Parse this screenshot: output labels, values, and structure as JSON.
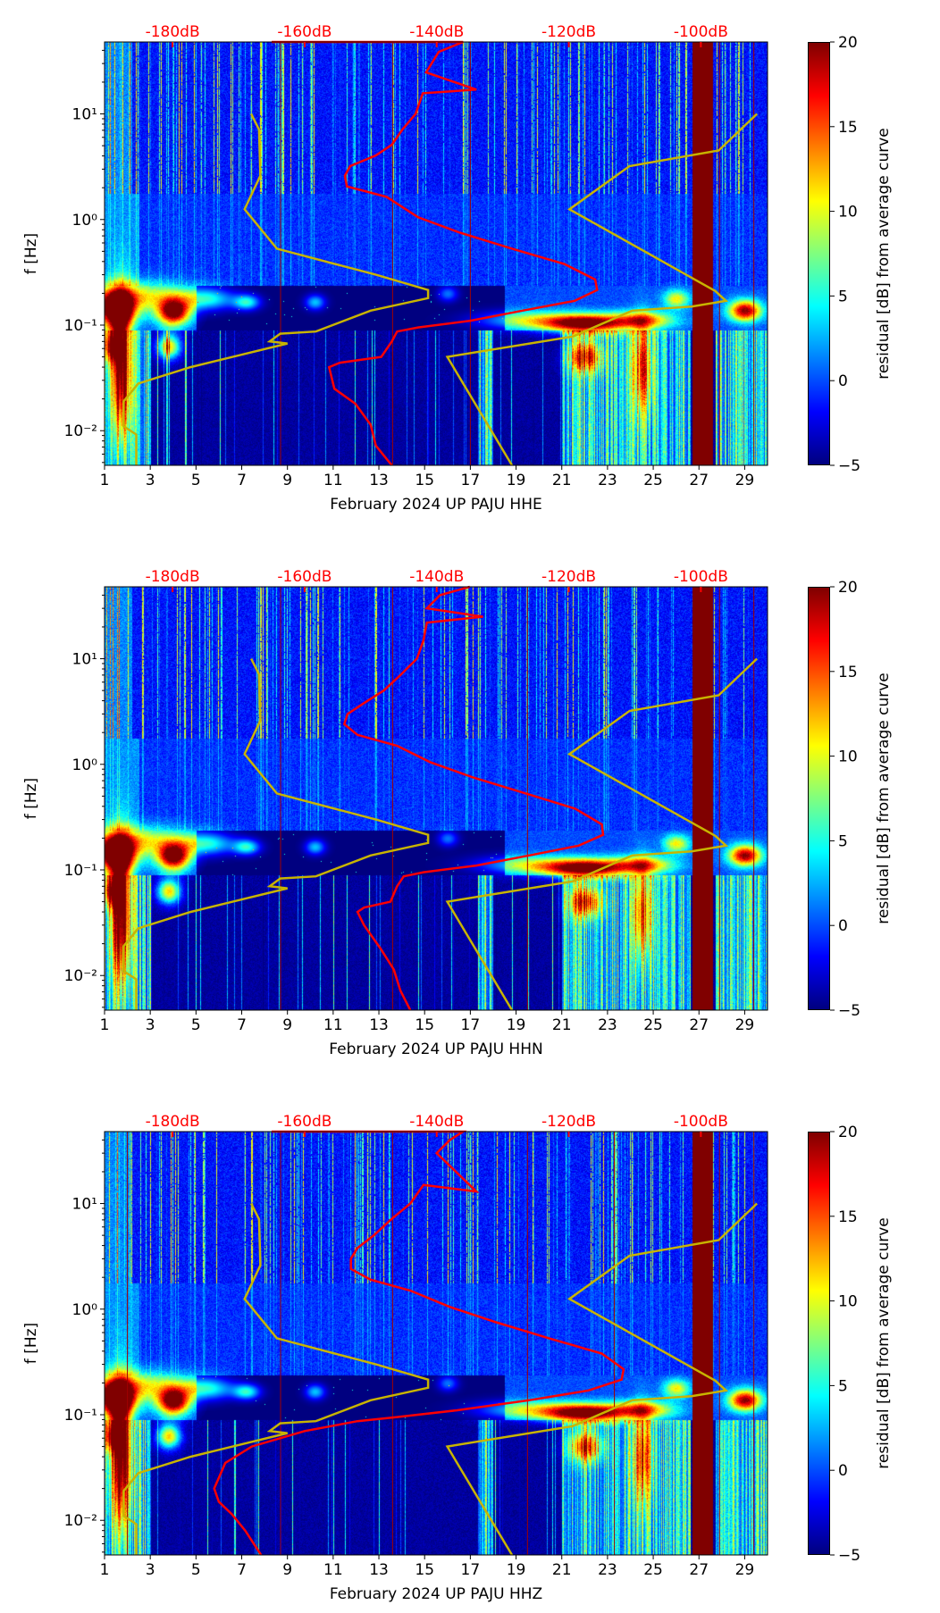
{
  "chart_data": [
    {
      "type": "heatmap",
      "title": "",
      "xlabel": "February 2024 UP PAJU  HHE",
      "ylabel": "f [Hz]",
      "colorbar_label": "residual [dB] from average curve",
      "xlim": [
        1,
        30
      ],
      "ylim": [
        0.0047,
        48
      ],
      "yscale": "log",
      "db_xlim": [
        -190.3,
        -89.9
      ],
      "clim": [
        -5,
        20
      ],
      "x_ticks": [
        "1",
        "3",
        "5",
        "7",
        "9",
        "11",
        "13",
        "15",
        "17",
        "19",
        "21",
        "23",
        "25",
        "27",
        "29"
      ],
      "y_ticks": [
        {
          "value": 10,
          "label": "10¹"
        },
        {
          "value": 1,
          "label": "10⁰"
        },
        {
          "value": 0.1,
          "label": "10⁻¹"
        },
        {
          "value": 0.01,
          "label": "10⁻²"
        }
      ],
      "db_ticks": [
        -180,
        -160,
        -140,
        -120,
        -100
      ],
      "db_tick_labels": [
        "-180dB",
        "-160dB",
        "-140dB",
        "-120dB",
        "-100dB"
      ],
      "colorbar_ticks": [
        "20",
        "15",
        "10",
        "5",
        "0",
        "−5"
      ],
      "colorbar_values": [
        20,
        15,
        10,
        5,
        0,
        -5
      ],
      "gap_days": [
        26.7,
        27.6
      ],
      "marker_days": [
        8.7,
        13.6,
        17,
        27.9,
        29.4
      ],
      "red_curve_db_hz": [
        [
          -165,
          48
        ],
        [
          -136,
          48
        ],
        [
          -139.7,
          38.7
        ],
        [
          -141.6,
          24.7
        ],
        [
          -134,
          17
        ],
        [
          -142.1,
          15.7
        ],
        [
          -143.2,
          10
        ],
        [
          -145.2,
          7.1
        ],
        [
          -146.8,
          5.1
        ],
        [
          -149.2,
          4.05
        ],
        [
          -153.1,
          3.2
        ],
        [
          -153.9,
          2.6
        ],
        [
          -153.6,
          2.06
        ],
        [
          -147.6,
          1.64
        ],
        [
          -142.8,
          1.05
        ],
        [
          -136.5,
          0.75
        ],
        [
          -128.6,
          0.53
        ],
        [
          -120.7,
          0.38
        ],
        [
          -116,
          0.27
        ],
        [
          -115.7,
          0.215
        ],
        [
          -119.1,
          0.17
        ],
        [
          -127,
          0.137
        ],
        [
          -134.9,
          0.11
        ],
        [
          -142.8,
          0.095
        ],
        [
          -146,
          0.087
        ],
        [
          -146.8,
          0.07
        ],
        [
          -148.4,
          0.05
        ],
        [
          -154.7,
          0.044
        ],
        [
          -156.3,
          0.04
        ],
        [
          -155.5,
          0.025
        ],
        [
          -152.3,
          0.018
        ],
        [
          -150,
          0.0114
        ],
        [
          -149.2,
          0.0072
        ],
        [
          -146.8,
          0.0047
        ]
      ]
    },
    {
      "type": "heatmap",
      "title": "",
      "xlabel": "February 2024 UP PAJU  HHN",
      "ylabel": "f [Hz]",
      "colorbar_label": "residual [dB] from average curve",
      "xlim": [
        1,
        30
      ],
      "ylim": [
        0.0047,
        48
      ],
      "yscale": "log",
      "db_xlim": [
        -190.3,
        -89.9
      ],
      "clim": [
        -5,
        20
      ],
      "x_ticks": [
        "1",
        "3",
        "5",
        "7",
        "9",
        "11",
        "13",
        "15",
        "17",
        "19",
        "21",
        "23",
        "25",
        "27",
        "29"
      ],
      "y_ticks": [
        {
          "value": 10,
          "label": "10¹"
        },
        {
          "value": 1,
          "label": "10⁰"
        },
        {
          "value": 0.1,
          "label": "10⁻¹"
        },
        {
          "value": 0.01,
          "label": "10⁻²"
        }
      ],
      "db_ticks": [
        -180,
        -160,
        -140,
        -120,
        -100
      ],
      "db_tick_labels": [
        "-180dB",
        "-160dB",
        "-140dB",
        "-120dB",
        "-100dB"
      ],
      "colorbar_ticks": [
        "20",
        "15",
        "10",
        "5",
        "0",
        "−5"
      ],
      "colorbar_values": [
        20,
        15,
        10,
        5,
        0,
        -5
      ],
      "gap_days": [
        26.7,
        27.6
      ],
      "marker_days": [
        8.7,
        13.6,
        19.5,
        27.9,
        29.4
      ],
      "red_curve_db_hz": [
        [
          -135,
          48
        ],
        [
          -139.5,
          40
        ],
        [
          -141.5,
          30
        ],
        [
          -133,
          25
        ],
        [
          -141.5,
          22
        ],
        [
          -142,
          15
        ],
        [
          -143,
          10
        ],
        [
          -145.5,
          7
        ],
        [
          -148,
          5
        ],
        [
          -151,
          3.8
        ],
        [
          -153.5,
          3
        ],
        [
          -154,
          2.4
        ],
        [
          -152,
          1.9
        ],
        [
          -146,
          1.5
        ],
        [
          -141,
          1.05
        ],
        [
          -134.5,
          0.75
        ],
        [
          -126.5,
          0.53
        ],
        [
          -119,
          0.38
        ],
        [
          -115,
          0.27
        ],
        [
          -114.8,
          0.215
        ],
        [
          -118.5,
          0.17
        ],
        [
          -126,
          0.137
        ],
        [
          -134,
          0.11
        ],
        [
          -142,
          0.095
        ],
        [
          -145,
          0.087
        ],
        [
          -146,
          0.07
        ],
        [
          -147,
          0.05
        ],
        [
          -151,
          0.044
        ],
        [
          -152,
          0.04
        ],
        [
          -151,
          0.03
        ],
        [
          -148.5,
          0.018
        ],
        [
          -146.5,
          0.0114
        ],
        [
          -145.5,
          0.0072
        ],
        [
          -144,
          0.0047
        ]
      ]
    },
    {
      "type": "heatmap",
      "title": "",
      "xlabel": "February 2024 UP PAJU  HHZ",
      "ylabel": "f [Hz]",
      "colorbar_label": "residual [dB] from average curve",
      "xlim": [
        1,
        30
      ],
      "ylim": [
        0.0047,
        48
      ],
      "yscale": "log",
      "db_xlim": [
        -190.3,
        -89.9
      ],
      "clim": [
        -5,
        20
      ],
      "x_ticks": [
        "1",
        "3",
        "5",
        "7",
        "9",
        "11",
        "13",
        "15",
        "17",
        "19",
        "21",
        "23",
        "25",
        "27",
        "29"
      ],
      "y_ticks": [
        {
          "value": 10,
          "label": "10¹"
        },
        {
          "value": 1,
          "label": "10⁰"
        },
        {
          "value": 0.1,
          "label": "10⁻¹"
        },
        {
          "value": 0.01,
          "label": "10⁻²"
        }
      ],
      "db_ticks": [
        -180,
        -160,
        -140,
        -120,
        -100
      ],
      "db_tick_labels": [
        "-180dB",
        "-160dB",
        "-140dB",
        "-120dB",
        "-100dB"
      ],
      "colorbar_ticks": [
        "20",
        "15",
        "10",
        "5",
        "0",
        "−5"
      ],
      "colorbar_values": [
        20,
        15,
        10,
        5,
        0,
        -5
      ],
      "gap_days": [
        26.7,
        27.6
      ],
      "marker_days": [
        2,
        8.7,
        13.6,
        19.5,
        23.3,
        27.9,
        29.4
      ],
      "red_curve_db_hz": [
        [
          -165,
          48
        ],
        [
          -136,
          48
        ],
        [
          -138,
          40
        ],
        [
          -140,
          30
        ],
        [
          -134,
          13
        ],
        [
          -142,
          15
        ],
        [
          -144,
          10
        ],
        [
          -147,
          7
        ],
        [
          -149.5,
          5
        ],
        [
          -152,
          3.8
        ],
        [
          -153,
          3
        ],
        [
          -153,
          2.4
        ],
        [
          -150,
          1.9
        ],
        [
          -144,
          1.5
        ],
        [
          -138,
          1.05
        ],
        [
          -131,
          0.75
        ],
        [
          -123,
          0.53
        ],
        [
          -115,
          0.38
        ],
        [
          -111.7,
          0.27
        ],
        [
          -112,
          0.215
        ],
        [
          -117,
          0.17
        ],
        [
          -126,
          0.137
        ],
        [
          -137,
          0.11
        ],
        [
          -146,
          0.095
        ],
        [
          -152,
          0.087
        ],
        [
          -160,
          0.07
        ],
        [
          -168,
          0.05
        ],
        [
          -172,
          0.035
        ],
        [
          -173.7,
          0.02
        ],
        [
          -173,
          0.015
        ],
        [
          -171,
          0.0114
        ],
        [
          -169,
          0.008
        ],
        [
          -166.6,
          0.0047
        ]
      ]
    }
  ],
  "reference_curves": {
    "low_db_hz": [
      [
        -168.1,
        10
      ],
      [
        -166.9,
        7.1
      ],
      [
        -166.7,
        2.6
      ],
      [
        -169.1,
        1.25
      ],
      [
        -164.2,
        0.53
      ],
      [
        -149.2,
        0.3
      ],
      [
        -141.3,
        0.215
      ],
      [
        -141.3,
        0.18
      ],
      [
        -150,
        0.137
      ],
      [
        -158.3,
        0.087
      ],
      [
        -163.7,
        0.083
      ],
      [
        -165.3,
        0.07
      ],
      [
        -162.6,
        0.067
      ],
      [
        -177.3,
        0.04
      ],
      [
        -185.2,
        0.028
      ],
      [
        -187.4,
        0.019
      ],
      [
        -187.4,
        0.011
      ],
      [
        -185.5,
        0.0092
      ],
      [
        -185.5,
        0.0047
      ]
    ],
    "high_db_hz": [
      [
        -91.5,
        10
      ],
      [
        -97.3,
        4.5
      ],
      [
        -110.8,
        3.2
      ],
      [
        -119.9,
        1.25
      ],
      [
        -97.8,
        0.21
      ],
      [
        -96.2,
        0.17
      ],
      [
        -101.4,
        0.15
      ],
      [
        -110.4,
        0.137
      ],
      [
        -119.4,
        0.078
      ],
      [
        -138.4,
        0.05
      ],
      [
        -128.6,
        0.0047
      ]
    ]
  },
  "colors": {
    "curve": "#ff0000",
    "reference": "#c8b400",
    "db_label": "#ff0000",
    "gap": "#7f0000"
  }
}
